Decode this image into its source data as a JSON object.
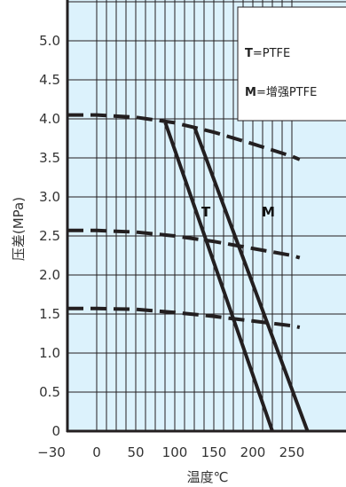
{
  "chart_data": {
    "type": "line",
    "title": "",
    "xlabel": "温度℃",
    "ylabel": "压差(MPa)",
    "xlim": [
      -30,
      260
    ],
    "ylim": [
      0,
      5.4
    ],
    "x_ticks": [
      -30,
      0,
      50,
      100,
      150,
      200,
      250
    ],
    "x_tick_labels": [
      "−30",
      "0",
      "50",
      "100",
      "150",
      "200",
      "250"
    ],
    "y_ticks": [
      0,
      0.5,
      1.0,
      1.5,
      2.0,
      2.5,
      3.0,
      3.5,
      4.0,
      4.5,
      5.0
    ],
    "y_tick_labels": [
      "0",
      "0.5",
      "1.0",
      "1.5",
      "2.0",
      "2.5",
      "3.0",
      "3.5",
      "4.0",
      "4.5",
      "5.0"
    ],
    "grid": true,
    "background_color": "#dcf2fc",
    "line_color": "#231f20",
    "legend": {
      "placement": "top-right",
      "entries": [
        {
          "key": "T",
          "text": "=PTFE"
        },
        {
          "key": "M",
          "text": "=增强PTFE"
        }
      ]
    },
    "series": [
      {
        "name": "T",
        "style": "solid",
        "x": [
          88,
          225
        ],
        "y": [
          3.95,
          0.0
        ]
      },
      {
        "name": "M",
        "style": "solid",
        "x": [
          125,
          270
        ],
        "y": [
          3.9,
          0.0
        ]
      },
      {
        "style": "dashed",
        "x": [
          -30,
          0,
          50,
          100,
          150,
          200,
          250,
          260
        ],
        "y": [
          4.05,
          4.05,
          4.02,
          3.95,
          3.83,
          3.68,
          3.52,
          3.48
        ]
      },
      {
        "style": "dashed",
        "x": [
          -30,
          0,
          50,
          100,
          150,
          200,
          250,
          260
        ],
        "y": [
          2.57,
          2.57,
          2.55,
          2.5,
          2.43,
          2.34,
          2.25,
          2.22
        ]
      },
      {
        "style": "dashed",
        "x": [
          -30,
          0,
          50,
          100,
          150,
          200,
          250,
          260
        ],
        "y": [
          1.57,
          1.57,
          1.56,
          1.52,
          1.47,
          1.41,
          1.35,
          1.33
        ]
      }
    ]
  }
}
